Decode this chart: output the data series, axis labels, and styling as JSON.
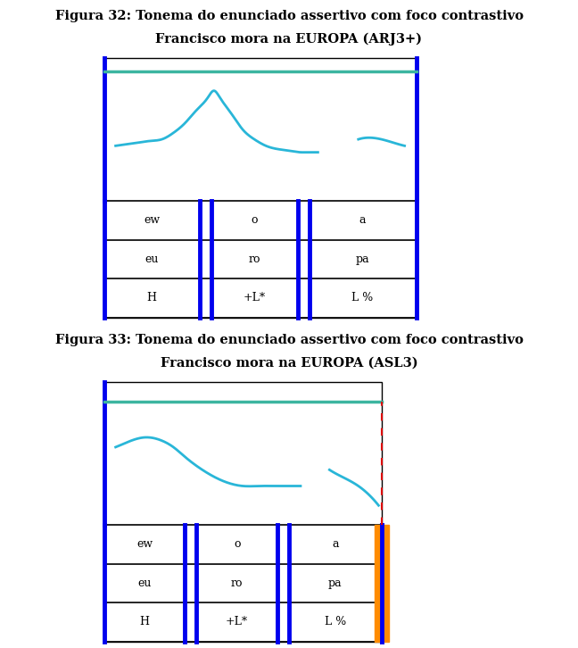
{
  "fig1_title1": "Figura 32: Tonema do enunciado assertivo com foco contrastivo",
  "fig1_title2": "Francisco mora na EUROPA (ARJ3+)",
  "fig2_title1": "Figura 33: Tonema do enunciado assertivo com foco contrastivo",
  "fig2_title2": "Francisco mora na EUROPA (ASL3)",
  "cyan_line_color": "#29B6D8",
  "teal_line_color": "#3CB5A0",
  "blue_border_color": "#0000EE",
  "black_color": "#000000",
  "red_dashed_color": "#DD0000",
  "orange_color": "#FF8C00",
  "bg_color": "#FFFFFF",
  "row1_labels": [
    "ew",
    "o",
    "a"
  ],
  "row2_labels": [
    "eu",
    "ro",
    "pa"
  ],
  "row3_labels": [
    "H",
    "+L*",
    "L %"
  ],
  "fontsize_title": 10.5,
  "fontsize_cell": 9
}
